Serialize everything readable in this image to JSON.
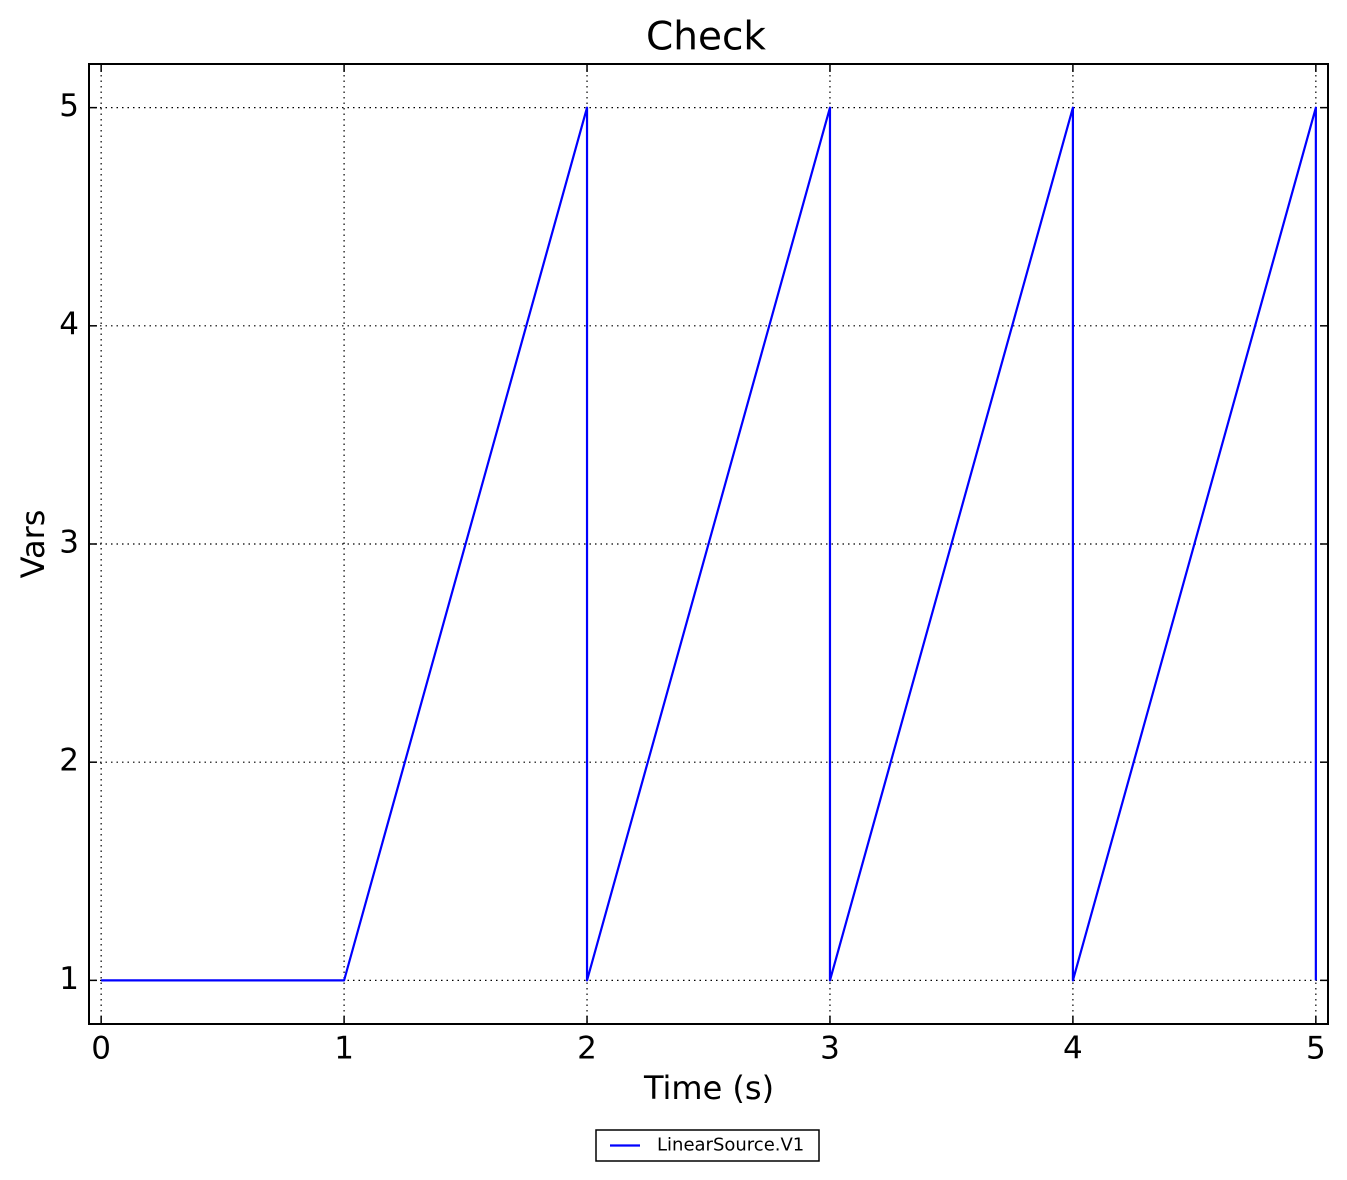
{
  "chart_data": {
    "type": "line",
    "title": "Check",
    "x_label": "Time (s)",
    "y_label": "Vars",
    "x": [
      0,
      1,
      2,
      2,
      3,
      3,
      4,
      4,
      5,
      5
    ],
    "series": [
      {
        "name": "LinearSource.V1",
        "color": "#0000ff",
        "values": [
          1,
          1,
          5,
          1,
          5,
          1,
          5,
          1,
          5,
          1
        ]
      }
    ],
    "xlim": [
      -0.05,
      5.05
    ],
    "ylim": [
      0.8,
      5.2
    ],
    "xticks": [
      0,
      1,
      2,
      3,
      4,
      5
    ],
    "yticks": [
      1,
      2,
      3,
      4,
      5
    ],
    "grid": true,
    "legend": "bottom"
  }
}
